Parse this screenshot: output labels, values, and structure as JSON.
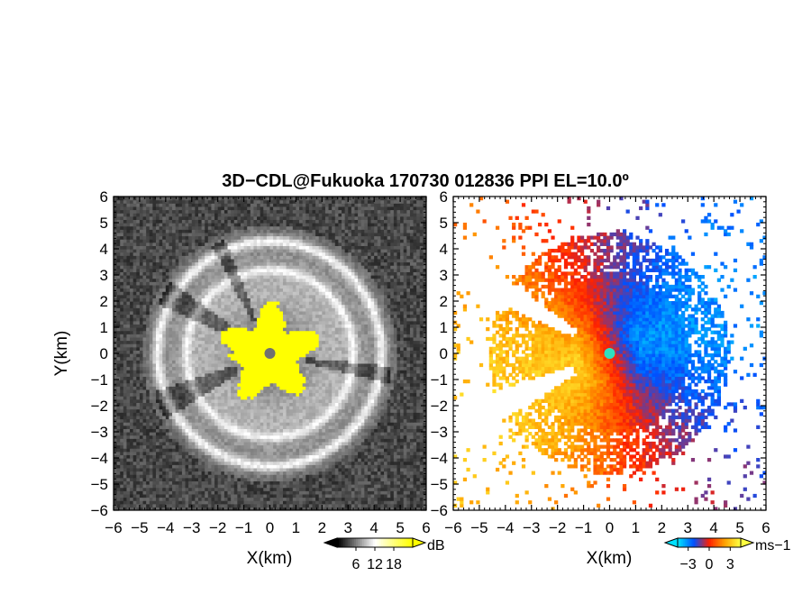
{
  "chart_data": [
    {
      "type": "heatmap",
      "title": "3D−CDL@Fukuoka 170730 012836 PPI EL=10.0º",
      "panel": "left",
      "quantity": "signal intensity",
      "xlabel": "X(km)",
      "ylabel": "Y(km)",
      "xlim": [
        -6,
        6
      ],
      "ylim": [
        -6,
        6
      ],
      "xticks": [
        "−6",
        "−5",
        "−4",
        "−3",
        "−2",
        "−1",
        "0",
        "1",
        "2",
        "3",
        "4",
        "5",
        "6"
      ],
      "yticks": [
        "6",
        "5",
        "4",
        "3",
        "2",
        "1",
        "0",
        "−1",
        "−2",
        "−3",
        "−4",
        "−5",
        "−6"
      ],
      "colorbar": {
        "unit": "dB",
        "ticks": [
          "6",
          "12",
          "18"
        ],
        "tick_values": [
          6,
          12,
          18
        ],
        "range": [
          0,
          24
        ],
        "colors": [
          "#000000",
          "#ffffff",
          "#ffff00"
        ]
      },
      "features": {
        "saturated_core_radius_km": 1.8,
        "outer_ring_radius_km": 4.3,
        "inner_ring_radius_km": 3.2
      }
    },
    {
      "type": "heatmap",
      "panel": "right",
      "quantity": "radial velocity",
      "xlabel": "X(km)",
      "ylabel": "",
      "xlim": [
        -6,
        6
      ],
      "ylim": [
        -6,
        6
      ],
      "xticks": [
        "−6",
        "−5",
        "−4",
        "−3",
        "−2",
        "−1",
        "0",
        "1",
        "2",
        "3",
        "4",
        "5",
        "6"
      ],
      "yticks": [
        "6",
        "5",
        "4",
        "3",
        "2",
        "1",
        "0",
        "−1",
        "−2",
        "−3",
        "−4",
        "−5",
        "−6"
      ],
      "colorbar": {
        "unit": "ms−1",
        "ticks": [
          "−3",
          "0",
          "3"
        ],
        "tick_values": [
          -3,
          0,
          3
        ],
        "range": [
          -4.5,
          4.5
        ],
        "colors": [
          "#00e0ff",
          "#0050ff",
          "#ff2000",
          "#ffa000",
          "#ffff40"
        ]
      }
    }
  ]
}
